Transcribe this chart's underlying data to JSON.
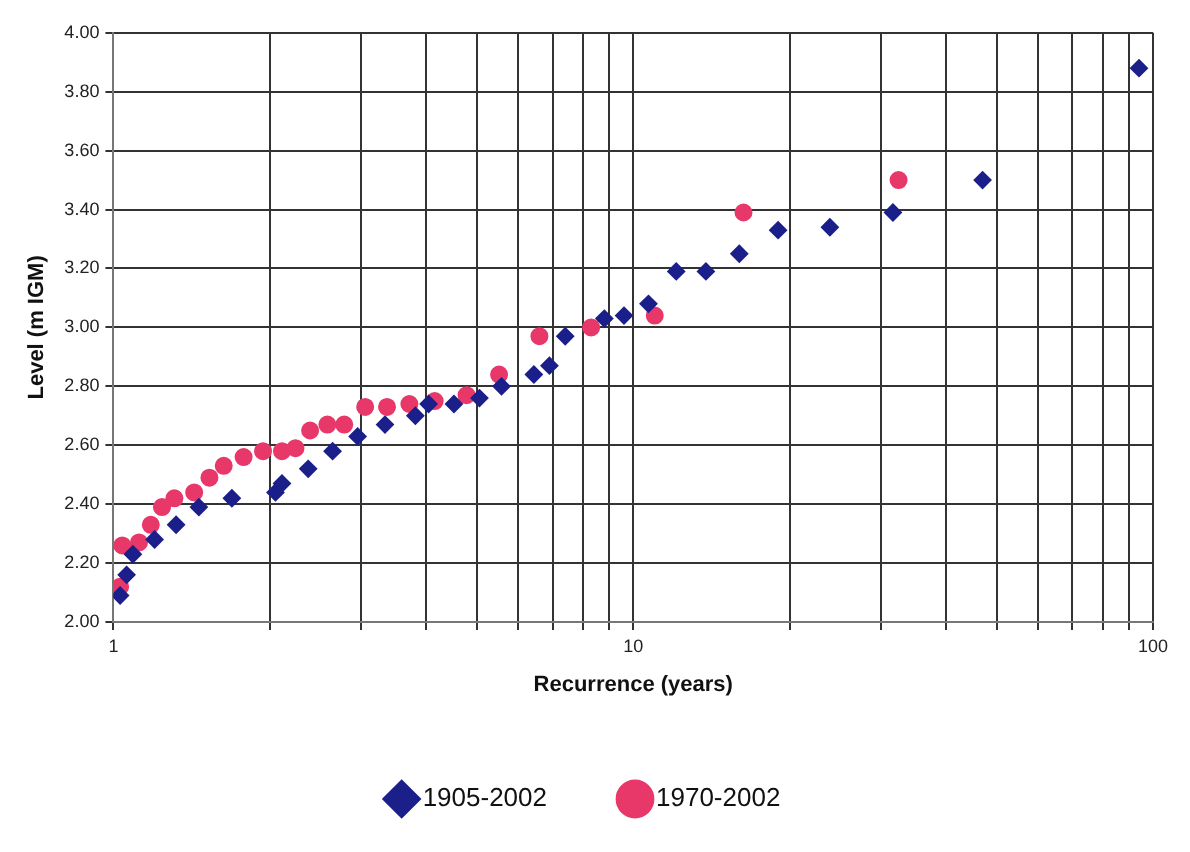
{
  "chart_data": {
    "type": "scatter",
    "xlabel": "Recurrence (years)",
    "ylabel": "Level (m IGM)",
    "log": "x",
    "grid": true,
    "legend": "bottom",
    "xlim": [
      1,
      100
    ],
    "ylim": [
      2,
      4
    ],
    "xticks": [
      1,
      {
        "value": 2,
        "label": null
      },
      {
        "value": 3,
        "label": null
      },
      {
        "value": 4,
        "label": null
      },
      {
        "value": 5,
        "label": null
      },
      {
        "value": 6,
        "label": null
      },
      {
        "value": 7,
        "label": null
      },
      {
        "value": 8,
        "label": null
      },
      {
        "value": 9,
        "label": null
      },
      10,
      {
        "value": 20,
        "label": null
      },
      {
        "value": 30,
        "label": null
      },
      {
        "value": 40,
        "label": null
      },
      {
        "value": 50,
        "label": null
      },
      {
        "value": 60,
        "label": null
      },
      {
        "value": 70,
        "label": null
      },
      {
        "value": 80,
        "label": null
      },
      {
        "value": 90,
        "label": null
      },
      100
    ],
    "yticks": [
      {
        "value": 2,
        "label": "2.00"
      },
      {
        "value": 2.2,
        "label": "2.20"
      },
      {
        "value": 2.4,
        "label": "2.40"
      },
      {
        "value": 2.6,
        "label": "2.60"
      },
      {
        "value": 2.8,
        "label": "2.80"
      },
      {
        "value": 3,
        "label": "3.00"
      },
      {
        "value": 3.2,
        "label": "3.20"
      },
      {
        "value": 3.4,
        "label": "3.40"
      },
      {
        "value": 3.6,
        "label": "3.60"
      },
      {
        "value": 3.8,
        "label": "3.80"
      },
      {
        "value": 4,
        "label": "4.00"
      }
    ],
    "series": [
      {
        "name": "1905-2002",
        "color": "#1a1f8a",
        "marker": "diamond",
        "x": [
          1.03,
          1.06,
          1.09,
          1.2,
          1.32,
          1.46,
          1.69,
          2.05,
          2.11,
          2.37,
          2.64,
          2.95,
          3.33,
          3.81,
          4.04,
          4.52,
          5.06,
          5.58,
          6.44,
          6.9,
          7.4,
          8.8,
          9.6,
          10.7,
          12.1,
          13.8,
          16,
          19,
          23.9,
          31.6,
          47,
          94
        ],
        "values": [
          2.09,
          2.16,
          2.23,
          2.28,
          2.33,
          2.39,
          2.42,
          2.44,
          2.47,
          2.52,
          2.58,
          2.63,
          2.67,
          2.7,
          2.74,
          2.74,
          2.76,
          2.8,
          2.84,
          2.87,
          2.97,
          3.03,
          3.04,
          3.08,
          3.19,
          3.19,
          3.25,
          3.33,
          3.34,
          3.39,
          3.5,
          3.88
        ]
      },
      {
        "name": "1970-2002",
        "color": "#e8386a",
        "marker": "circle",
        "x": [
          1.03,
          1.04,
          1.12,
          1.18,
          1.24,
          1.31,
          1.43,
          1.53,
          1.63,
          1.78,
          1.94,
          2.11,
          2.24,
          2.39,
          2.58,
          2.78,
          3.05,
          3.36,
          3.71,
          4.15,
          4.78,
          5.52,
          6.6,
          8.3,
          11,
          16.3,
          32.4
        ],
        "values": [
          2.12,
          2.26,
          2.27,
          2.33,
          2.39,
          2.42,
          2.44,
          2.49,
          2.53,
          2.56,
          2.58,
          2.58,
          2.59,
          2.65,
          2.67,
          2.67,
          2.73,
          2.73,
          2.74,
          2.75,
          2.77,
          2.84,
          2.97,
          3,
          3.04,
          3.39,
          3.5
        ]
      }
    ]
  }
}
